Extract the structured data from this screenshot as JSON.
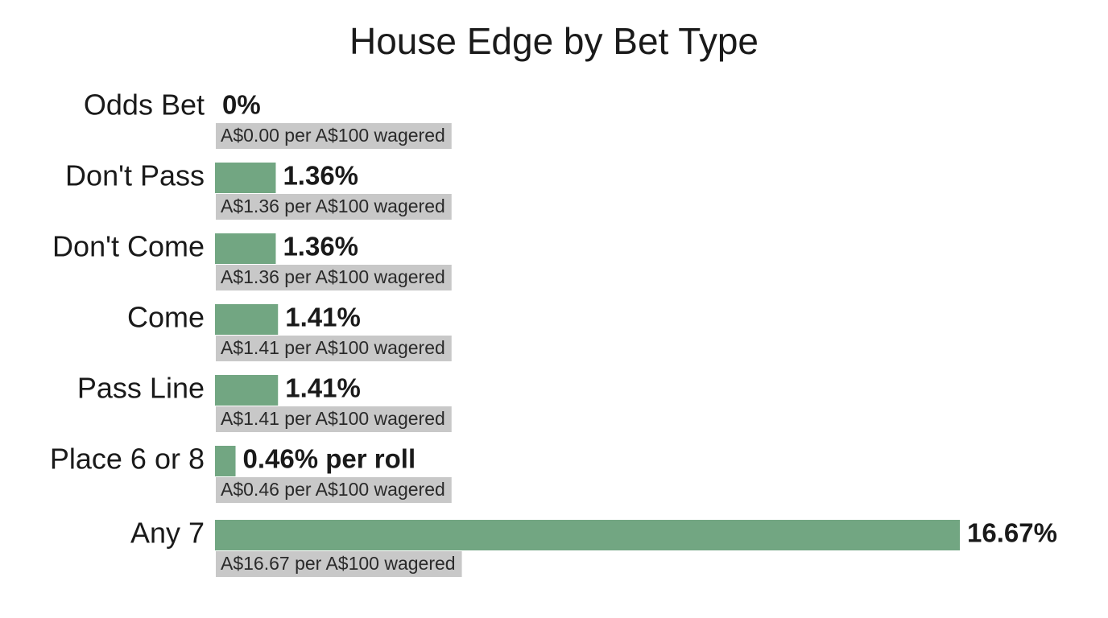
{
  "chart_data": {
    "type": "bar",
    "orientation": "horizontal",
    "title": "House Edge by Bet Type",
    "categories": [
      "Odds Bet",
      "Don't Pass",
      "Don't Come",
      "Come",
      "Pass Line",
      "Place 6 or 8",
      "Any 7"
    ],
    "values": [
      0,
      1.36,
      1.36,
      1.41,
      1.41,
      0.46,
      16.67
    ],
    "value_labels": [
      "0%",
      "1.36%",
      "1.36%",
      "1.41%",
      "1.41%",
      "0.46% per roll",
      "16.67%"
    ],
    "sublabels": [
      "A$0.00 per A$100 wagered",
      "A$1.36 per A$100 wagered",
      "A$1.36 per A$100 wagered",
      "A$1.41 per A$100 wagered",
      "A$1.41 per A$100 wagered",
      "A$0.46 per A$100 wagered",
      "A$16.67 per A$100 wagered"
    ],
    "color": "#72a682"
  }
}
